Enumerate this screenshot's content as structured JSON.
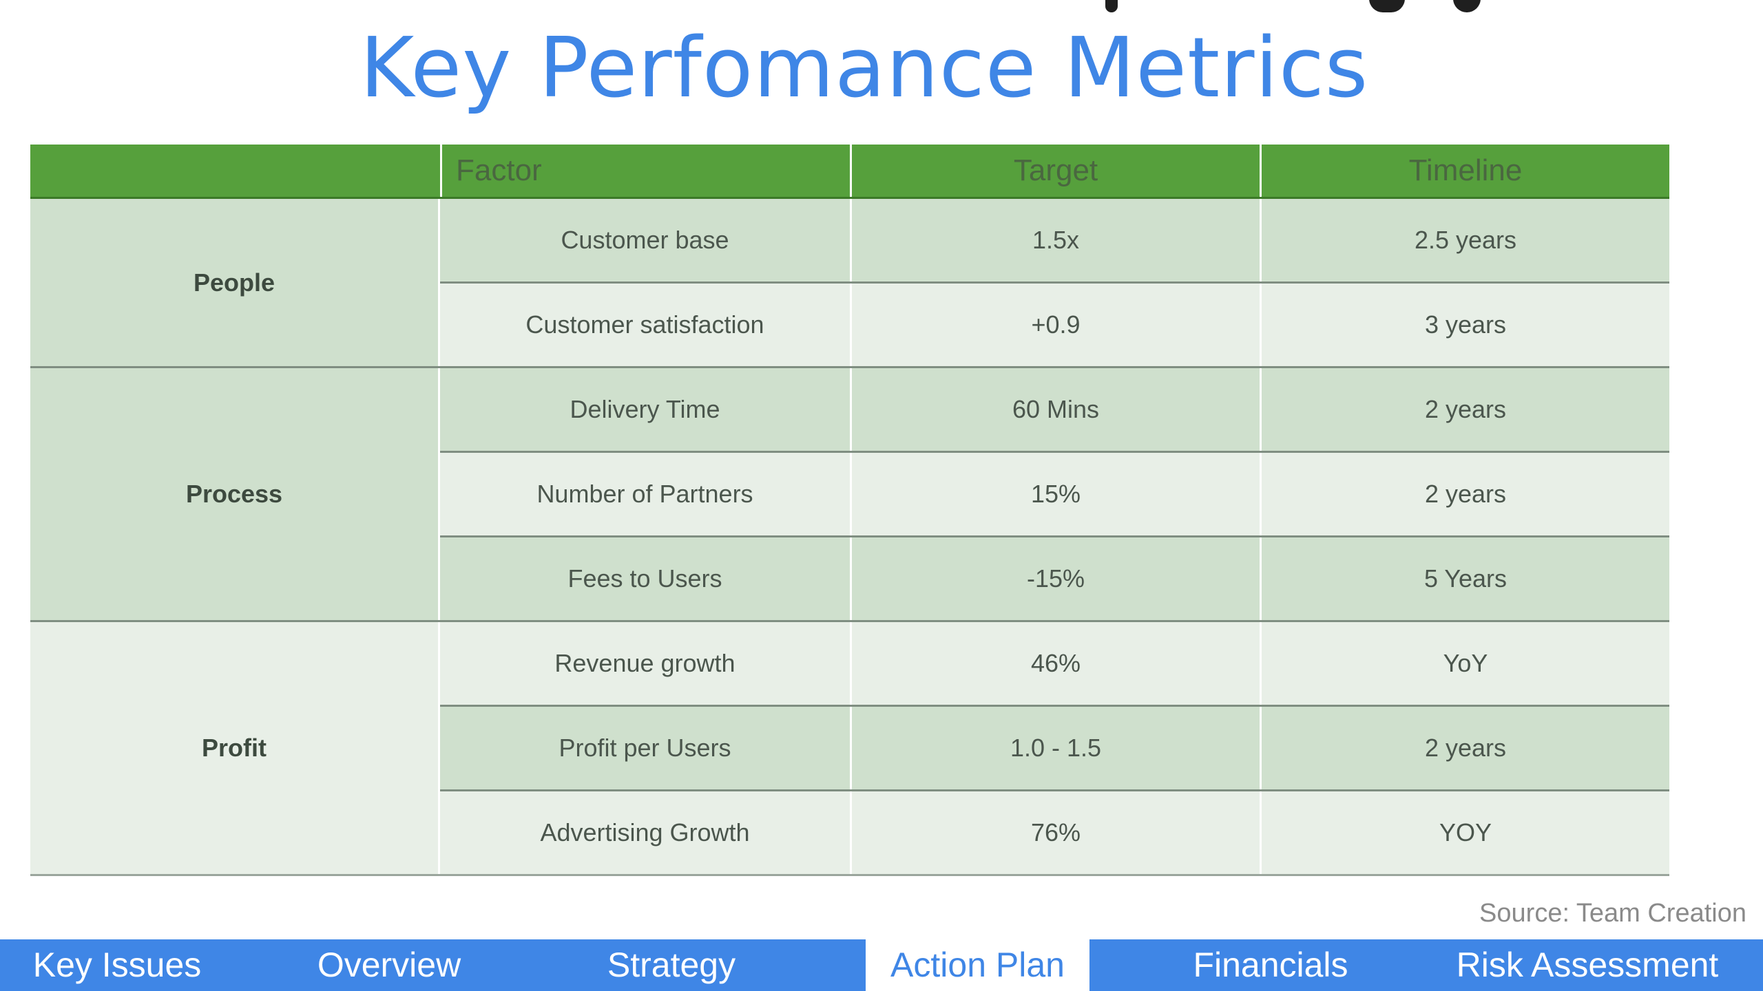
{
  "title": "Key Perfomance Metrics",
  "table": {
    "headers": [
      "",
      "Factor",
      "Target",
      "Timeline"
    ],
    "groups": [
      {
        "name": "People",
        "rows": [
          {
            "factor": "Customer base",
            "target": "1.5x",
            "timeline": "2.5 years"
          },
          {
            "factor": "Customer satisfaction",
            "target": "+0.9",
            "timeline": "3 years"
          }
        ]
      },
      {
        "name": "Process",
        "rows": [
          {
            "factor": "Delivery Time",
            "target": "60 Mins",
            "timeline": "2 years"
          },
          {
            "factor": "Number of Partners",
            "target": "15%",
            "timeline": "2 years"
          },
          {
            "factor": "Fees to Users",
            "target": "-15%",
            "timeline": "5 Years"
          }
        ]
      },
      {
        "name": "Profit",
        "rows": [
          {
            "factor": "Revenue growth",
            "target": "46%",
            "timeline": "YoY"
          },
          {
            "factor": "Profit per Users",
            "target": "1.0 - 1.5",
            "timeline": "2 years"
          },
          {
            "factor": "Advertising Growth",
            "target": "76%",
            "timeline": "YOY"
          }
        ]
      }
    ]
  },
  "source": "Source: Team Creation",
  "nav": {
    "tabs": [
      {
        "label": "Key Issues",
        "active": false
      },
      {
        "label": "Overview",
        "active": false
      },
      {
        "label": "Strategy",
        "active": false
      },
      {
        "label": "Action Plan",
        "active": true
      },
      {
        "label": "Financials",
        "active": false
      },
      {
        "label": "Risk Assessment",
        "active": false
      }
    ]
  },
  "colors": {
    "title": "#3f86e6",
    "header_green": "#56a03c",
    "row_green": "#cfe0cd",
    "row_light": "#e8efe7",
    "nav_blue": "#3f86e6"
  }
}
